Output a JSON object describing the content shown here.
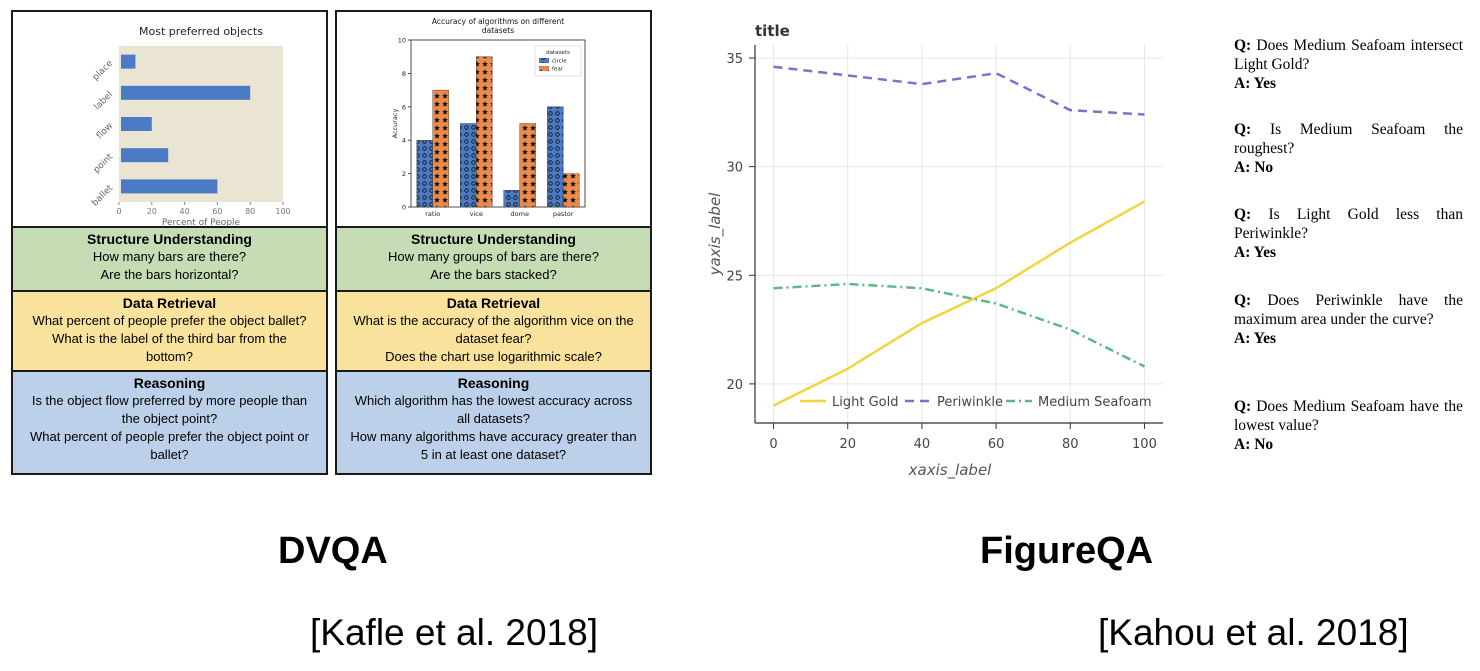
{
  "dvqa": {
    "chart1": {
      "title": "Most preferred objects",
      "xlabel": "Percent of People",
      "ticks": [
        "0",
        "20",
        "40",
        "60",
        "80",
        "100"
      ],
      "bar_color": "#4a7bc4",
      "bg_color": "#eae5d2"
    },
    "chart2": {
      "title_line1": "Accuracy of algorithms on different",
      "title_line2": "datasets",
      "ylabel": "Accuracy",
      "yticks": [
        "0",
        "2",
        "4",
        "6",
        "8",
        "10"
      ],
      "legend_title": "datasets",
      "legend": [
        "circle",
        "fear"
      ],
      "colors": {
        "circle": "#4a7bc4",
        "fear": "#ed8a4a"
      }
    },
    "col1": {
      "structure": {
        "heading": "Structure Understanding",
        "q1": "How many bars are there?",
        "q2": "Are the bars horizontal?"
      },
      "retrieval": {
        "heading": "Data Retrieval",
        "q1": "What percent of people prefer the object ballet?",
        "q2a": "What is the label of the third bar from the",
        "q2b": "bottom?"
      },
      "reasoning": {
        "heading": "Reasoning",
        "q1a": "Is the object flow preferred by more people than",
        "q1b": "the object point?",
        "q2a": "What percent of people prefer the object point or",
        "q2b": "ballet?"
      }
    },
    "col2": {
      "structure": {
        "heading": "Structure Understanding",
        "q1": "How many groups of bars are there?",
        "q2": "Are the bars stacked?"
      },
      "retrieval": {
        "heading": "Data Retrieval",
        "q1a": "What is the accuracy of the algorithm vice on the",
        "q1b": "dataset fear?",
        "q2": "Does the chart use logarithmic scale?"
      },
      "reasoning": {
        "heading": "Reasoning",
        "q1a": "Which algorithm has the lowest accuracy across",
        "q1b": "all datasets?",
        "q2a": "How many algorithms have accuracy greater than",
        "q2b": "5 in at least one dataset?"
      }
    },
    "name": "DVQA",
    "citation": "[Kafle et al. 2018]"
  },
  "figureqa": {
    "chart": {
      "title": "title",
      "xlabel": "xaxis_label",
      "ylabel": "yaxis_label",
      "xticks": [
        "0",
        "20",
        "40",
        "60",
        "80",
        "100"
      ],
      "yticks": [
        "20",
        "25",
        "30",
        "35"
      ],
      "legend": [
        "Light Gold",
        "Periwinkle",
        "Medium Seafoam"
      ],
      "colors": {
        "Light Gold": "#f2d43c",
        "Periwinkle": "#7b72d0",
        "Medium Seafoam": "#5fb883"
      }
    },
    "qa": [
      {
        "q_label": "Q:",
        "q": "Does Medium Seafoam intersect Light Gold?",
        "a_label": "A:",
        "a": "Yes"
      },
      {
        "q_label": "Q:",
        "q": "Is Medium Seafoam the roughest?",
        "a_label": "A:",
        "a": "No"
      },
      {
        "q_label": "Q:",
        "q": "Is Light Gold less than Periwinkle?",
        "a_label": "A:",
        "a": "Yes"
      },
      {
        "q_label": "Q:",
        "q": "Does Periwinkle have the maximum area under the curve?",
        "a_label": "A:",
        "a": "Yes"
      },
      {
        "q_label": "Q:",
        "q": "Does Medium Seafoam have the lowest value?",
        "a_label": "A:",
        "a": "No"
      }
    ],
    "name": "FigureQA",
    "citation": "[Kahou et al. 2018]"
  },
  "chart_data": [
    {
      "type": "bar",
      "orientation": "horizontal",
      "title": "Most preferred objects",
      "xlabel": "Percent of People",
      "categories": [
        "ballet",
        "point",
        "flow",
        "label",
        "place"
      ],
      "values": [
        60,
        30,
        20,
        80,
        10
      ],
      "xlim": [
        0,
        100
      ]
    },
    {
      "type": "bar",
      "title": "Accuracy of algorithms on different datasets",
      "ylabel": "Accuracy",
      "categories": [
        "ratio",
        "vice",
        "dome",
        "pastor"
      ],
      "series": [
        {
          "name": "circle",
          "values": [
            4,
            5,
            1,
            6
          ]
        },
        {
          "name": "fear",
          "values": [
            7,
            9,
            5,
            2
          ]
        }
      ],
      "ylim": [
        0,
        10
      ],
      "legend_position": "top-right"
    },
    {
      "type": "line",
      "title": "title",
      "xlabel": "xaxis_label",
      "ylabel": "yaxis_label",
      "x": [
        0,
        20,
        40,
        60,
        80,
        100
      ],
      "series": [
        {
          "name": "Light Gold",
          "values": [
            19.0,
            20.7,
            22.8,
            24.4,
            26.5,
            28.4
          ]
        },
        {
          "name": "Periwinkle",
          "values": [
            34.6,
            34.2,
            33.8,
            34.3,
            32.6,
            32.4
          ]
        },
        {
          "name": "Medium Seafoam",
          "values": [
            24.4,
            24.6,
            24.4,
            23.7,
            22.5,
            20.8
          ]
        }
      ],
      "xlim": [
        -5,
        105
      ],
      "ylim": [
        18.2,
        35.6
      ],
      "grid": true,
      "legend_position": "bottom-right"
    }
  ]
}
